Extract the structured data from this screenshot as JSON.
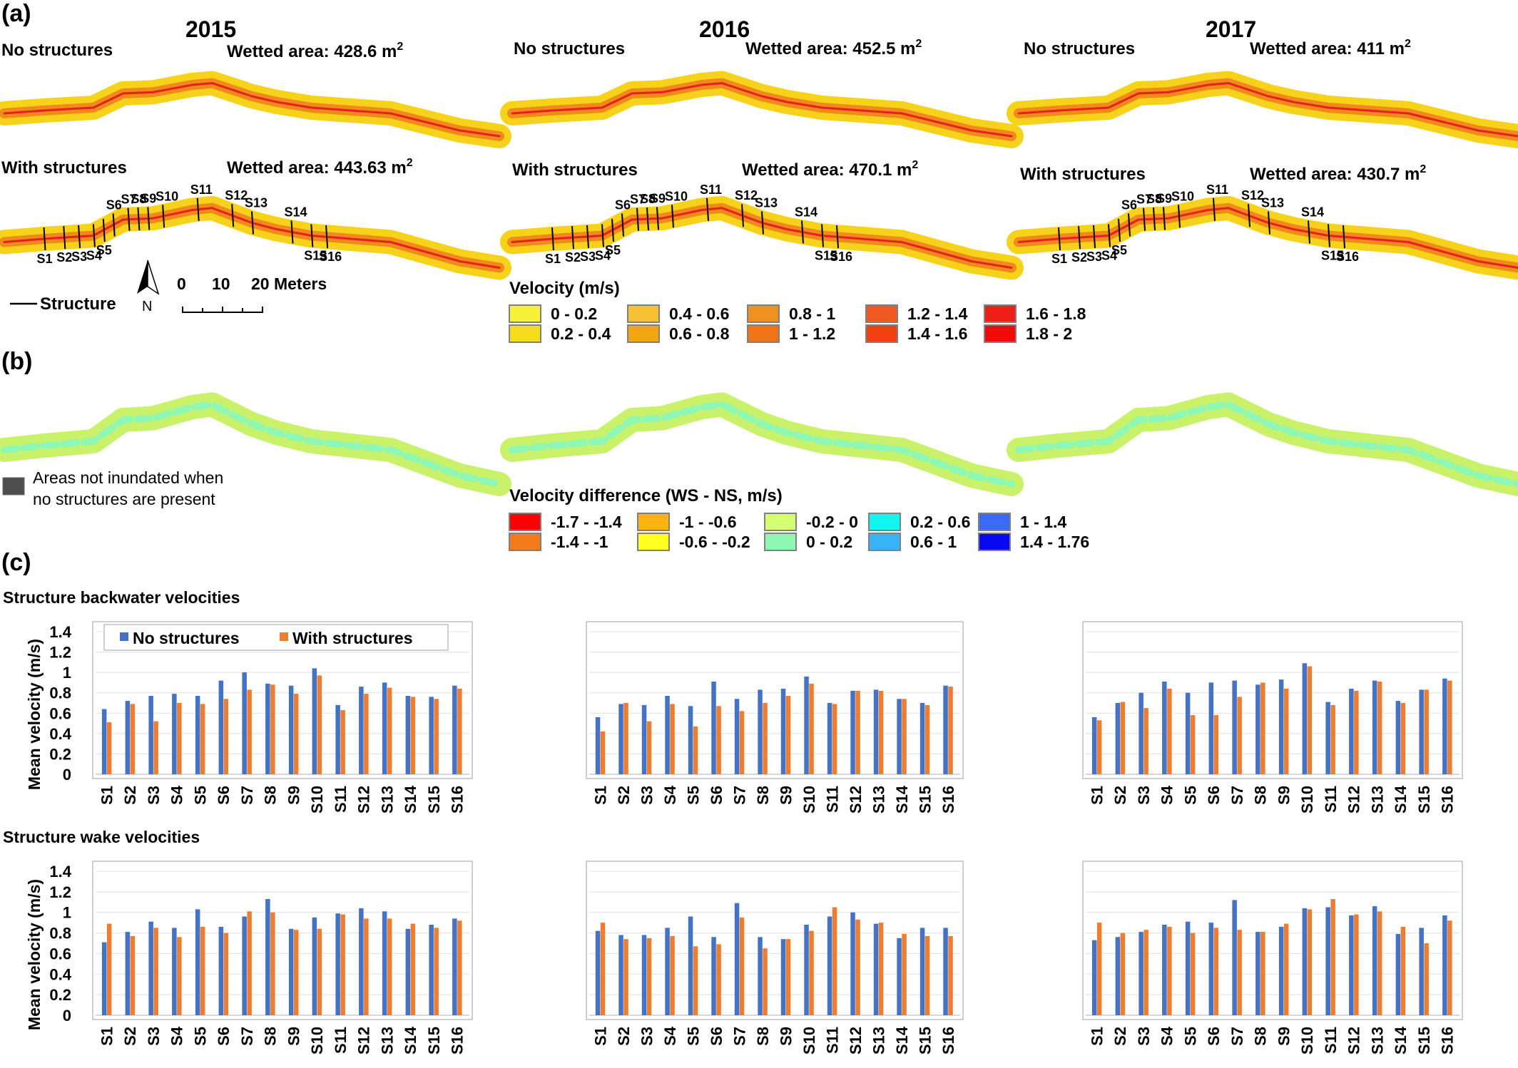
{
  "panel_a": {
    "label": "(a)",
    "years": [
      {
        "year": "2015",
        "no_structures_label": "No structures",
        "with_structures_label": "With structures",
        "wetted_no": "Wetted area: 428.6 m",
        "wetted_with": "Wetted area: 443.63  m",
        "sup": "2"
      },
      {
        "year": "2016",
        "no_structures_label": "No structures",
        "with_structures_label": "With structures",
        "wetted_no": "Wetted area: 452.5  m",
        "wetted_with": "Wetted area: 470.1  m",
        "sup": "2"
      },
      {
        "year": "2017",
        "no_structures_label": "No structures",
        "with_structures_label": "With structures",
        "wetted_no": "Wetted area: 411  m",
        "wetted_with": "Wetted area: 430.7  m",
        "sup": "2"
      }
    ],
    "structure_labels": [
      "S1",
      "S2",
      "S3",
      "S4",
      "S5",
      "S6",
      "S7",
      "S8",
      "S9",
      "S10",
      "S11",
      "S12",
      "S13",
      "S14",
      "S15",
      "S16"
    ],
    "structure_legend": "Structure",
    "north": "N",
    "scale": {
      "ticks": [
        "0",
        "10",
        "20 Meters"
      ]
    },
    "velocity_legend": {
      "title": "Velocity (m/s)",
      "items": [
        {
          "label": "0 - 0.2",
          "color": "#f5f03a"
        },
        {
          "label": "0.2 - 0.4",
          "color": "#f7dc1c"
        },
        {
          "label": "0.4 - 0.6",
          "color": "#f6c234"
        },
        {
          "label": "0.6 - 0.8",
          "color": "#f2a712"
        },
        {
          "label": "0.8 - 1",
          "color": "#ef9120"
        },
        {
          "label": "1 - 1.2",
          "color": "#f07416"
        },
        {
          "label": "1.2 - 1.4",
          "color": "#ee5a22"
        },
        {
          "label": "1.4 - 1.6",
          "color": "#f04010"
        },
        {
          "label": "1.6 - 1.8",
          "color": "#ee2018"
        },
        {
          "label": "1.8 - 2",
          "color": "#f00a0a"
        }
      ]
    }
  },
  "panel_b": {
    "label": "(b)",
    "not_inundated_line1": "Areas not inundated when",
    "not_inundated_line2": "no structures are present",
    "not_inundated_color": "#4d4d4d",
    "diff_legend": {
      "title": "Velocity difference (WS - NS, m/s)",
      "items": [
        {
          "label": "-1.7 - -1.4",
          "color": "#ff0000"
        },
        {
          "label": "-1.4 - -1",
          "color": "#f57a1a"
        },
        {
          "label": "-1 - -0.6",
          "color": "#ffb310"
        },
        {
          "label": "-0.6 - -0.2",
          "color": "#ffff20"
        },
        {
          "label": "-0.2 - 0",
          "color": "#d4ff70"
        },
        {
          "label": "0 - 0.2",
          "color": "#8ef7b4"
        },
        {
          "label": "0.2 - 0.6",
          "color": "#10f7f0"
        },
        {
          "label": "0.6 - 1",
          "color": "#36b4f7"
        },
        {
          "label": "1 - 1.4",
          "color": "#3a6af7"
        },
        {
          "label": "1.4 - 1.76",
          "color": "#0a0af0"
        }
      ]
    }
  },
  "panel_c": {
    "label": "(c)",
    "backwater_title": "Structure backwater velocities",
    "wake_title": "Structure wake velocities",
    "ylabel": "Mean velocity (m/s)",
    "legend": {
      "no": "No structures",
      "with": "With structures"
    }
  },
  "chart_data": [
    {
      "type": "bar",
      "panel": "backwater-2015",
      "categories": [
        "S1",
        "S2",
        "S3",
        "S4",
        "S5",
        "S6",
        "S7",
        "S8",
        "S9",
        "S10",
        "S11",
        "S12",
        "S13",
        "S14",
        "S15",
        "S16"
      ],
      "ylim": [
        0,
        1.4
      ],
      "yticks": [
        "0",
        "0.2",
        "0.4",
        "0.6",
        "0.8",
        "1",
        "1.2",
        "1.4"
      ],
      "ylabel": "Mean velocity (m/s)",
      "series": [
        {
          "name": "No structures",
          "color": "#4472c4",
          "values": [
            0.64,
            0.72,
            0.77,
            0.79,
            0.77,
            0.92,
            1.0,
            0.89,
            0.87,
            1.04,
            0.68,
            0.86,
            0.9,
            0.77,
            0.76,
            0.87
          ]
        },
        {
          "name": "With structures",
          "color": "#ed7d31",
          "values": [
            0.51,
            0.69,
            0.52,
            0.7,
            0.69,
            0.74,
            0.83,
            0.88,
            0.79,
            0.97,
            0.63,
            0.79,
            0.85,
            0.76,
            0.74,
            0.84
          ]
        }
      ],
      "legend": "top-left",
      "grid": true
    },
    {
      "type": "bar",
      "panel": "backwater-2016",
      "categories": [
        "S1",
        "S2",
        "S3",
        "S4",
        "S5",
        "S6",
        "S7",
        "S8",
        "S9",
        "S10",
        "S11",
        "S12",
        "S13",
        "S14",
        "S15",
        "S16"
      ],
      "ylim": [
        0,
        1.4
      ],
      "series": [
        {
          "name": "No structures",
          "color": "#4472c4",
          "values": [
            0.56,
            0.69,
            0.68,
            0.77,
            0.67,
            0.91,
            0.74,
            0.83,
            0.84,
            0.96,
            0.7,
            0.82,
            0.83,
            0.74,
            0.7,
            0.87
          ]
        },
        {
          "name": "With structures",
          "color": "#ed7d31",
          "values": [
            0.42,
            0.7,
            0.52,
            0.69,
            0.47,
            0.67,
            0.62,
            0.7,
            0.77,
            0.89,
            0.69,
            0.82,
            0.82,
            0.74,
            0.68,
            0.86
          ]
        }
      ],
      "grid": true
    },
    {
      "type": "bar",
      "panel": "backwater-2017",
      "categories": [
        "S1",
        "S2",
        "S3",
        "S4",
        "S5",
        "S6",
        "S7",
        "S8",
        "S9",
        "S10",
        "S11",
        "S12",
        "S13",
        "S14",
        "S15",
        "S16"
      ],
      "ylim": [
        0,
        1.4
      ],
      "series": [
        {
          "name": "No structures",
          "color": "#4472c4",
          "values": [
            0.56,
            0.7,
            0.8,
            0.91,
            0.8,
            0.9,
            0.92,
            0.88,
            0.93,
            1.09,
            0.71,
            0.84,
            0.92,
            0.72,
            0.83,
            0.94
          ]
        },
        {
          "name": "With structures",
          "color": "#ed7d31",
          "values": [
            0.53,
            0.71,
            0.65,
            0.84,
            0.58,
            0.58,
            0.76,
            0.9,
            0.84,
            1.06,
            0.68,
            0.82,
            0.91,
            0.7,
            0.83,
            0.92
          ]
        }
      ],
      "grid": true
    },
    {
      "type": "bar",
      "panel": "wake-2015",
      "categories": [
        "S1",
        "S2",
        "S3",
        "S4",
        "S5",
        "S6",
        "S7",
        "S8",
        "S9",
        "S10",
        "S11",
        "S12",
        "S13",
        "S14",
        "S15",
        "S16"
      ],
      "ylim": [
        0,
        1.4
      ],
      "yticks": [
        "0",
        "0.2",
        "0.4",
        "0.6",
        "0.8",
        "1",
        "1.2",
        "1.4"
      ],
      "ylabel": "Mean velocity (m/s)",
      "series": [
        {
          "name": "No structures",
          "color": "#4472c4",
          "values": [
            0.71,
            0.81,
            0.91,
            0.85,
            1.03,
            0.86,
            0.96,
            1.13,
            0.84,
            0.95,
            0.99,
            1.04,
            1.01,
            0.84,
            0.88,
            0.94
          ]
        },
        {
          "name": "With structures",
          "color": "#ed7d31",
          "values": [
            0.89,
            0.77,
            0.85,
            0.76,
            0.86,
            0.8,
            1.01,
            1.0,
            0.83,
            0.84,
            0.98,
            0.94,
            0.94,
            0.89,
            0.85,
            0.92
          ]
        }
      ],
      "grid": true
    },
    {
      "type": "bar",
      "panel": "wake-2016",
      "categories": [
        "S1",
        "S2",
        "S3",
        "S4",
        "S5",
        "S6",
        "S7",
        "S8",
        "S9",
        "S10",
        "S11",
        "S12",
        "S13",
        "S14",
        "S15",
        "S16"
      ],
      "ylim": [
        0,
        1.4
      ],
      "series": [
        {
          "name": "No structures",
          "color": "#4472c4",
          "values": [
            0.82,
            0.78,
            0.78,
            0.85,
            0.96,
            0.76,
            1.09,
            0.76,
            0.74,
            0.88,
            0.96,
            1.0,
            0.89,
            0.75,
            0.85,
            0.85
          ]
        },
        {
          "name": "With structures",
          "color": "#ed7d31",
          "values": [
            0.9,
            0.74,
            0.75,
            0.77,
            0.67,
            0.69,
            0.95,
            0.65,
            0.74,
            0.82,
            1.05,
            0.93,
            0.9,
            0.79,
            0.77,
            0.77
          ]
        }
      ],
      "grid": true
    },
    {
      "type": "bar",
      "panel": "wake-2017",
      "categories": [
        "S1",
        "S2",
        "S3",
        "S4",
        "S5",
        "S6",
        "S7",
        "S8",
        "S9",
        "S10",
        "S11",
        "S12",
        "S13",
        "S14",
        "S15",
        "S16"
      ],
      "ylim": [
        0,
        1.4
      ],
      "series": [
        {
          "name": "No structures",
          "color": "#4472c4",
          "values": [
            0.73,
            0.76,
            0.81,
            0.88,
            0.91,
            0.9,
            1.12,
            0.81,
            0.86,
            1.04,
            1.05,
            0.97,
            1.06,
            0.79,
            0.85,
            0.97
          ]
        },
        {
          "name": "With structures",
          "color": "#ed7d31",
          "values": [
            0.9,
            0.8,
            0.83,
            0.86,
            0.8,
            0.85,
            0.83,
            0.81,
            0.89,
            1.03,
            1.13,
            0.98,
            1.01,
            0.86,
            0.7,
            0.92
          ]
        }
      ],
      "grid": true
    }
  ]
}
